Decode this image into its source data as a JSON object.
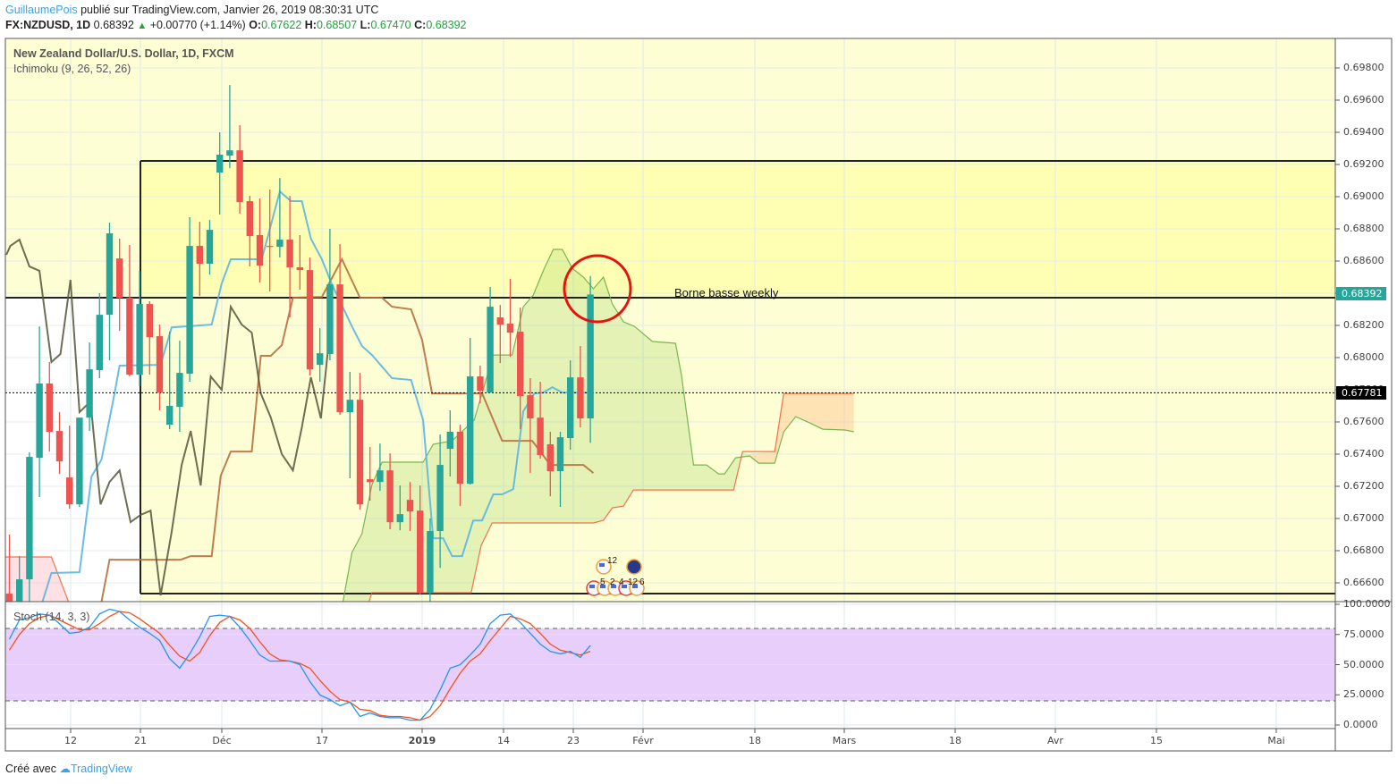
{
  "header": {
    "author": "GuillaumePois",
    "published": "publié sur TradingView.com, Janvier 26, 2019 08:30:31 UTC",
    "symbol": "FX:NZDUSD, 1D",
    "last": "0.68392",
    "change": "+0.00770 (+1.14%)",
    "o_label": "O:",
    "o": "0.67622",
    "h_label": "H:",
    "h": "0.68507",
    "l_label": "L:",
    "l": "0.67470",
    "c_label": "C:",
    "c": "0.68392"
  },
  "legend": {
    "title": "New Zealand Dollar/U.S. Dollar, 1D, FXCM",
    "indicator": "Ichimoku (9, 26, 52, 26)",
    "stoch": "Stoch (14, 3, 3)"
  },
  "annotation": {
    "text": "Borne basse weekly"
  },
  "price_labels": {
    "last": "0.68392",
    "line": "0.67781"
  },
  "footer": {
    "created": "Créé avec",
    "brand": "TradingView"
  },
  "events": {
    "top": "12",
    "bottom": [
      "5",
      "2",
      "4",
      "12",
      "6"
    ]
  },
  "colors": {
    "up": "#26a69a",
    "down": "#ef5350",
    "tenkan": "#5ab6e2",
    "kijun": "#b8703f",
    "chikou": "#55553a",
    "senkou_a": "#6aae48",
    "senkou_b": "#f2653a",
    "stoch_k": "#2196f3",
    "stoch_d": "#f4511e",
    "zone": "#ffffb4",
    "bg": "#fefed4",
    "circle": "#e8120c"
  },
  "chart_data": {
    "type": "candlestick",
    "title": "New Zealand Dollar/U.S. Dollar, 1D, FXCM",
    "ylim": [
      0.6648,
      0.6993
    ],
    "y_ticks": [
      "0.69800",
      "0.69600",
      "0.69400",
      "0.69200",
      "0.69000",
      "0.68800",
      "0.68600",
      "0.68400",
      "0.68200",
      "0.68000",
      "0.67800",
      "0.67600",
      "0.67400",
      "0.67200",
      "0.67000",
      "0.66800",
      "0.66600"
    ],
    "y_tick_values": [
      0.698,
      0.696,
      0.694,
      0.692,
      0.69,
      0.688,
      0.686,
      0.684,
      0.682,
      0.68,
      0.678,
      0.676,
      0.674,
      0.672,
      0.67,
      0.668,
      0.666
    ],
    "x_ticks": [
      "12",
      "21",
      "Déc",
      "17",
      "2019",
      "14",
      "23",
      "Févr",
      "18",
      "Mars",
      "18",
      "Avr",
      "15",
      "Mai"
    ],
    "ohlc": [
      [
        0.66533,
        0.669,
        0.66483,
        0.66483
      ],
      [
        0.66483,
        0.66766,
        0.66483,
        0.66622
      ],
      [
        0.66622,
        0.67411,
        0.66483,
        0.67383
      ],
      [
        0.67377,
        0.68194,
        0.67133,
        0.67839
      ],
      [
        0.67839,
        0.67972,
        0.67416,
        0.67539
      ],
      [
        0.67544,
        0.67661,
        0.67277,
        0.67355
      ],
      [
        0.67255,
        0.67577,
        0.67061,
        0.67088
      ],
      [
        0.67088,
        0.67627,
        0.67072,
        0.67627
      ],
      [
        0.67627,
        0.68094,
        0.67544,
        0.67927
      ],
      [
        0.67922,
        0.684,
        0.67872,
        0.68266
      ],
      [
        0.68266,
        0.68839,
        0.67983,
        0.68772
      ],
      [
        0.68616,
        0.68739,
        0.68166,
        0.68372
      ],
      [
        0.68372,
        0.687,
        0.67883,
        0.67894
      ],
      [
        0.67894,
        0.68539,
        0.67822,
        0.68333
      ],
      [
        0.68333,
        0.6835,
        0.67894,
        0.68127
      ],
      [
        0.68133,
        0.68205,
        0.67672,
        0.67783
      ],
      [
        0.67583,
        0.68161,
        0.67555,
        0.677
      ],
      [
        0.67694,
        0.68105,
        0.67539,
        0.67905
      ],
      [
        0.679,
        0.68872,
        0.6785,
        0.68694
      ],
      [
        0.68694,
        0.68844,
        0.68383,
        0.68583
      ],
      [
        0.68583,
        0.68855,
        0.68516,
        0.68794
      ],
      [
        0.6915,
        0.694,
        0.68889,
        0.69261
      ],
      [
        0.69255,
        0.69694,
        0.69177,
        0.69288
      ],
      [
        0.69288,
        0.69444,
        0.68894,
        0.68966
      ],
      [
        0.68972,
        0.69005,
        0.68566,
        0.68755
      ],
      [
        0.68761,
        0.68989,
        0.68466,
        0.68572
      ],
      [
        0.68694,
        0.69044,
        0.68411,
        0.6869
      ],
      [
        0.68688,
        0.69116,
        0.68622,
        0.68733
      ],
      [
        0.68733,
        0.69005,
        0.6825,
        0.68561
      ],
      [
        0.68561,
        0.68761,
        0.68422,
        0.68544
      ],
      [
        0.68544,
        0.68622,
        0.67888,
        0.67927
      ],
      [
        0.67955,
        0.68183,
        0.6785,
        0.68027
      ],
      [
        0.68022,
        0.688,
        0.67983,
        0.68455
      ],
      [
        0.68455,
        0.68705,
        0.67644,
        0.67661
      ],
      [
        0.67661,
        0.67911,
        0.6725,
        0.67738
      ],
      [
        0.67738,
        0.67905,
        0.67055,
        0.67088
      ],
      [
        0.67244,
        0.67444,
        0.67111,
        0.67227
      ],
      [
        0.67227,
        0.67466,
        0.67172,
        0.67299
      ],
      [
        0.67299,
        0.67405,
        0.66933,
        0.66977
      ],
      [
        0.66977,
        0.67205,
        0.66927,
        0.67027
      ],
      [
        0.67116,
        0.67227,
        0.66922,
        0.67044
      ],
      [
        0.67049,
        0.67205,
        0.66527,
        0.66538
      ],
      [
        0.66538,
        0.67,
        0.66483,
        0.66922
      ],
      [
        0.66922,
        0.67522,
        0.66694,
        0.67333
      ],
      [
        0.67433,
        0.67672,
        0.67261,
        0.67539
      ],
      [
        0.67539,
        0.67583,
        0.67077,
        0.67216
      ],
      [
        0.67216,
        0.68122,
        0.67211,
        0.67883
      ],
      [
        0.67883,
        0.6795,
        0.67716,
        0.67794
      ],
      [
        0.67783,
        0.68439,
        0.67783,
        0.68316
      ],
      [
        0.6825,
        0.68327,
        0.67966,
        0.68205
      ],
      [
        0.68211,
        0.68489,
        0.68005,
        0.68155
      ],
      [
        0.68161,
        0.68311,
        0.67555,
        0.67761
      ],
      [
        0.67766,
        0.67872,
        0.67283,
        0.67622
      ],
      [
        0.67627,
        0.6785,
        0.67372,
        0.67394
      ],
      [
        0.67461,
        0.67539,
        0.67138,
        0.67294
      ],
      [
        0.67294,
        0.67539,
        0.67072,
        0.67505
      ],
      [
        0.675,
        0.67983,
        0.67427,
        0.67877
      ],
      [
        0.67877,
        0.68072,
        0.67566,
        0.67622
      ],
      [
        0.67622,
        0.68507,
        0.6747,
        0.68392
      ]
    ],
    "ichimoku": {
      "tenkan": [
        [
          3.3,
          0.66483
        ],
        [
          4.2,
          0.66661
        ],
        [
          7.0,
          0.66666
        ],
        [
          8.2,
          0.67261
        ],
        [
          9.2,
          0.67366
        ],
        [
          10.5,
          0.67777
        ],
        [
          11.0,
          0.6795
        ],
        [
          15.1,
          0.67955
        ],
        [
          16.2,
          0.68188
        ],
        [
          20.2,
          0.68205
        ],
        [
          21.2,
          0.68461
        ],
        [
          22.1,
          0.68611
        ],
        [
          25.2,
          0.68611
        ],
        [
          27.0,
          0.69033
        ],
        [
          28.1,
          0.68972
        ],
        [
          29.2,
          0.68972
        ],
        [
          30.1,
          0.68739
        ],
        [
          31.2,
          0.68611
        ],
        [
          32.2,
          0.68455
        ],
        [
          34.2,
          0.68194
        ],
        [
          35.2,
          0.68072
        ],
        [
          36.2,
          0.68016
        ],
        [
          38.2,
          0.67872
        ],
        [
          40.1,
          0.67861
        ],
        [
          41.3,
          0.67611
        ],
        [
          42.3,
          0.66877
        ],
        [
          43.3,
          0.66877
        ],
        [
          44.2,
          0.66766
        ],
        [
          45.2,
          0.66766
        ],
        [
          46.3,
          0.66988
        ],
        [
          47.2,
          0.66988
        ],
        [
          48.3,
          0.6715
        ],
        [
          49.2,
          0.6715
        ],
        [
          50.3,
          0.67183
        ],
        [
          51.3,
          0.67666
        ],
        [
          52.4,
          0.67777
        ],
        [
          53.3,
          0.67783
        ],
        [
          54.2,
          0.67816
        ],
        [
          55.2,
          0.67783
        ],
        [
          58.3,
          0.67783
        ]
      ],
      "kijun": [
        [
          9.2,
          0.66483
        ],
        [
          10.0,
          0.66744
        ],
        [
          17.1,
          0.66744
        ],
        [
          18.1,
          0.66766
        ],
        [
          20.2,
          0.66766
        ],
        [
          21.1,
          0.67266
        ],
        [
          22.1,
          0.67416
        ],
        [
          24.2,
          0.67416
        ],
        [
          25.1,
          0.68011
        ],
        [
          26.1,
          0.68011
        ],
        [
          27.2,
          0.68077
        ],
        [
          28.3,
          0.68372
        ],
        [
          31.2,
          0.68377
        ],
        [
          33.2,
          0.68611
        ],
        [
          35.0,
          0.68372
        ],
        [
          37.2,
          0.68372
        ],
        [
          38.2,
          0.68316
        ],
        [
          40.1,
          0.683
        ],
        [
          41.2,
          0.68111
        ],
        [
          42.2,
          0.67777
        ],
        [
          47.2,
          0.67777
        ],
        [
          49.2,
          0.67483
        ],
        [
          52.2,
          0.67483
        ],
        [
          54.0,
          0.67333
        ],
        [
          57.3,
          0.67333
        ],
        [
          58.3,
          0.67283
        ]
      ],
      "chikou": [
        [
          -0.3,
          0.68639
        ],
        [
          0.1,
          0.68694
        ],
        [
          1.0,
          0.68733
        ],
        [
          2.0,
          0.68566
        ],
        [
          3.0,
          0.68539
        ],
        [
          4.2,
          0.67972
        ],
        [
          5.1,
          0.68022
        ],
        [
          6.1,
          0.68483
        ],
        [
          7.0,
          0.67661
        ],
        [
          8.1,
          0.67727
        ],
        [
          9.1,
          0.67088
        ],
        [
          10.0,
          0.67227
        ],
        [
          11.0,
          0.67299
        ],
        [
          12.1,
          0.66977
        ],
        [
          13.1,
          0.67022
        ],
        [
          14.1,
          0.67049
        ],
        [
          15.1,
          0.66522
        ],
        [
          16.2,
          0.66916
        ],
        [
          17.2,
          0.67333
        ],
        [
          18.1,
          0.67544
        ],
        [
          19.1,
          0.67205
        ],
        [
          20.1,
          0.67883
        ],
        [
          21.2,
          0.678
        ],
        [
          22.1,
          0.68316
        ],
        [
          23.2,
          0.68205
        ],
        [
          24.2,
          0.68155
        ],
        [
          25.1,
          0.67777
        ],
        [
          26.1,
          0.67627
        ],
        [
          27.2,
          0.674
        ],
        [
          28.3,
          0.67299
        ],
        [
          29.2,
          0.67566
        ],
        [
          30.1,
          0.67877
        ],
        [
          31.1,
          0.67622
        ],
        [
          32.1,
          0.68222
        ]
      ],
      "senkou_a": [
        [
          33.3,
          0.66483
        ],
        [
          34.2,
          0.66789
        ],
        [
          35.2,
          0.66905
        ],
        [
          36.2,
          0.67211
        ],
        [
          37.2,
          0.6735
        ],
        [
          41.3,
          0.6735
        ],
        [
          42.3,
          0.67461
        ],
        [
          44.2,
          0.67483
        ],
        [
          46.4,
          0.67611
        ],
        [
          48.3,
          0.68016
        ],
        [
          50.2,
          0.68016
        ],
        [
          51.3,
          0.68316
        ],
        [
          52.3,
          0.68389
        ],
        [
          53.4,
          0.68555
        ],
        [
          54.3,
          0.68672
        ],
        [
          55.2,
          0.68672
        ],
        [
          56.2,
          0.68555
        ],
        [
          57.3,
          0.685
        ],
        [
          58.3,
          0.68428
        ],
        [
          59.3,
          0.685
        ],
        [
          60.2,
          0.68333
        ],
        [
          61.3,
          0.68222
        ],
        [
          62.4,
          0.68194
        ],
        [
          64.2,
          0.681
        ],
        [
          66.5,
          0.68089
        ],
        [
          67.1,
          0.67889
        ],
        [
          68.3,
          0.67333
        ],
        [
          69.6,
          0.67333
        ],
        [
          70.8,
          0.67277
        ],
        [
          71.4,
          0.67277
        ],
        [
          72.5,
          0.67377
        ],
        [
          73.9,
          0.67389
        ],
        [
          74.8,
          0.67344
        ],
        [
          76.4,
          0.67344
        ],
        [
          77.3,
          0.67539
        ],
        [
          78.5,
          0.67633
        ],
        [
          79.9,
          0.67594
        ],
        [
          81.2,
          0.67555
        ],
        [
          83.4,
          0.6755
        ],
        [
          84.3,
          0.67539
        ]
      ],
      "senkou_b": [
        [
          35.9,
          0.66483
        ],
        [
          36.2,
          0.66539
        ],
        [
          46.1,
          0.66539
        ],
        [
          47.1,
          0.66833
        ],
        [
          48.2,
          0.66972
        ],
        [
          58.3,
          0.66972
        ],
        [
          59.3,
          0.66989
        ],
        [
          60.2,
          0.67066
        ],
        [
          61.3,
          0.67077
        ],
        [
          62.3,
          0.67177
        ],
        [
          72.3,
          0.67177
        ],
        [
          73.2,
          0.67416
        ],
        [
          76.4,
          0.67416
        ],
        [
          77.3,
          0.67777
        ],
        [
          84.3,
          0.67777
        ]
      ],
      "senkou_b_left": [
        [
          -0.9,
          0.66761
        ],
        [
          4.2,
          0.66761
        ],
        [
          5.9,
          0.66483
        ]
      ]
    },
    "zone": {
      "top": 0.69222,
      "bottom": 0.66533,
      "line": 0.68372
    },
    "hline": 0.67781,
    "stoch": {
      "ylim": [
        0,
        100
      ],
      "bands": [
        80,
        20
      ],
      "y_ticks": [
        "100.0000",
        "75.0000",
        "50.0000",
        "25.0000",
        "0.0000"
      ],
      "y_tick_values": [
        100,
        75,
        50,
        25,
        0
      ],
      "k": [
        71,
        87,
        89,
        92,
        91,
        84,
        76,
        77,
        81,
        92,
        96,
        94,
        87,
        81,
        76,
        70,
        55,
        47,
        59,
        73,
        90,
        91,
        90,
        81,
        70,
        58,
        53,
        53,
        53,
        50,
        36,
        25,
        21,
        16,
        19,
        7,
        10,
        7,
        6,
        6,
        4,
        4,
        13,
        29,
        47,
        50,
        58,
        67,
        84,
        91,
        92,
        85,
        76,
        67,
        61,
        59,
        61,
        56,
        66
      ],
      "d": [
        62,
        75,
        84,
        89,
        91,
        87,
        83,
        79,
        79,
        84,
        90,
        94,
        93,
        88,
        82,
        76,
        66,
        57,
        53,
        60,
        74,
        85,
        90,
        87,
        80,
        69,
        59,
        54,
        53,
        51,
        47,
        37,
        28,
        21,
        19,
        13,
        12,
        8,
        7,
        7,
        6,
        4,
        7,
        16,
        30,
        43,
        53,
        59,
        70,
        80,
        90,
        88,
        84,
        76,
        67,
        62,
        60,
        58,
        61
      ]
    }
  }
}
